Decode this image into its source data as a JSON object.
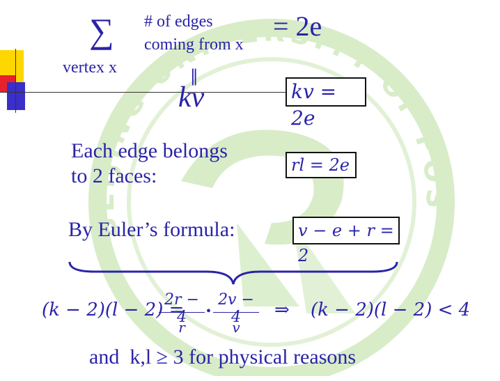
{
  "colors": {
    "text": "#2a23a8",
    "watermark": "#d8ecc8",
    "accent_yellow": "#ffd700",
    "accent_red": "#e8212a",
    "accent_blue": "#3a2fc8"
  },
  "watermark": {
    "text": "BEIJING UNIVERSITY OF POSTS AND TELECOMMUNICATIONS"
  },
  "sum": {
    "symbol": "∑",
    "subscript": "vertex x",
    "desc_line1": "# of edges",
    "desc_line2": "coming from x",
    "rhs": "= 2e",
    "equals_vertical": "||",
    "kv": "kv"
  },
  "boxes": {
    "kv_2e": "kv = 2e",
    "rl_2e": "rl = 2e",
    "euler": "v − e + r = 2"
  },
  "text": {
    "each_edge_line1": "Each edge belongs",
    "each_edge_line2": "to 2 faces:",
    "euler_label": "By Euler’s formula:",
    "final": "and  k,l ≥ 3 for physical reasons"
  },
  "formula": {
    "lhs": "(k − 2)(l − 2) =",
    "frac1_num": "2r − 4",
    "frac1_den": "r",
    "dot": "•",
    "frac2_num": "2v − 4",
    "frac2_den": "v",
    "implies": "⇒",
    "rhs": "(k − 2)(l − 2) < 4"
  }
}
